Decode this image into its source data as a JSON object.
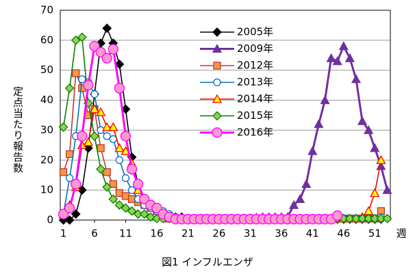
{
  "chart_data": {
    "type": "line",
    "caption": "図1 インフルエンザ",
    "y_label": "定点当たり報告数",
    "x_label": "週",
    "x": [
      1,
      2,
      3,
      4,
      5,
      6,
      7,
      8,
      9,
      10,
      11,
      12,
      13,
      14,
      15,
      16,
      17,
      18,
      19,
      20,
      21,
      22,
      23,
      24,
      25,
      26,
      27,
      28,
      29,
      30,
      31,
      32,
      33,
      34,
      35,
      36,
      37,
      38,
      39,
      40,
      41,
      42,
      43,
      44,
      45,
      46,
      47,
      48,
      49,
      50,
      51,
      52,
      53
    ],
    "xlim": [
      0.5,
      53.5
    ],
    "xticks": [
      1,
      6,
      11,
      16,
      21,
      26,
      31,
      36,
      41,
      46,
      51
    ],
    "ylim": [
      0,
      70
    ],
    "yticks": [
      0,
      10,
      20,
      30,
      40,
      50,
      60,
      70
    ],
    "grid": true,
    "series": [
      {
        "name": "2005年",
        "color": "#000000",
        "marker": "diamond",
        "marker_fill": "#000000",
        "values": [
          0,
          0,
          2,
          10,
          24,
          42,
          59,
          64,
          59,
          52,
          37,
          21,
          12,
          7,
          5,
          3,
          2,
          1.5,
          1,
          1,
          0.5,
          0.3,
          0.3,
          0.3,
          0.3,
          0.3,
          0.3,
          0.3,
          0.3,
          0.3,
          0.3,
          0.3,
          0.3,
          0.3,
          0.3,
          0.3,
          0.3,
          0.3,
          0.3,
          0.3,
          0.3,
          0.3,
          0.3,
          0.3,
          0.3,
          0.3,
          0.3,
          0.3,
          0.3,
          0.3,
          0.3,
          0.3,
          null
        ]
      },
      {
        "name": "2009年",
        "color": "#7030a0",
        "marker": "triangle",
        "marker_fill": "#7030a0",
        "values": [
          null,
          null,
          null,
          null,
          null,
          null,
          null,
          null,
          null,
          null,
          null,
          null,
          null,
          null,
          null,
          null,
          null,
          null,
          null,
          null,
          null,
          null,
          null,
          null,
          null,
          null,
          null,
          0.2,
          0.2,
          0.3,
          0.5,
          0.8,
          1,
          1,
          1,
          1,
          1,
          5,
          7,
          12,
          23,
          32,
          40,
          54,
          53,
          58,
          54,
          47,
          33,
          30,
          24,
          18,
          10
        ]
      },
      {
        "name": "2012年",
        "color": "#c0392b",
        "marker": "square",
        "marker_fill": "#f79646",
        "values": [
          16,
          22,
          49,
          44,
          35,
          37,
          24,
          16,
          12,
          9,
          8,
          7,
          6,
          5,
          4,
          3,
          2,
          1,
          0.5,
          0.5,
          0.5,
          0.5,
          0.5,
          0.5,
          0.5,
          0.5,
          0.5,
          0.5,
          0.5,
          0.5,
          0.5,
          0.5,
          0.5,
          0.5,
          0.5,
          0.5,
          0.5,
          0.5,
          0.5,
          0.5,
          0.5,
          0.5,
          0.5,
          0.5,
          0.5,
          0.5,
          0.5,
          0.5,
          0.5,
          0.5,
          0.5,
          3,
          null
        ]
      },
      {
        "name": "2013年",
        "color": "#0070c0",
        "marker": "circle",
        "marker_fill": "#ffffff",
        "values": [
          2,
          14,
          28,
          47,
          46,
          42,
          30,
          28,
          27,
          20,
          14,
          10,
          7,
          5,
          4,
          3,
          3,
          2,
          1,
          0.5,
          0.5,
          0.5,
          0.5,
          0.5,
          0.5,
          0.5,
          0.5,
          0.5,
          0.5,
          0.5,
          0.5,
          0.5,
          0.5,
          0.5,
          0.5,
          0.5,
          0.5,
          0.5,
          0.5,
          0.5,
          0.5,
          0.5,
          0.5,
          0.5,
          0.5,
          0.5,
          0.5,
          0.5,
          0.5,
          0.5,
          0.5,
          1,
          null
        ]
      },
      {
        "name": "2014年",
        "color": "#ff0000",
        "marker": "triangle",
        "marker_fill": "#ffff00",
        "values": [
          2,
          5,
          11,
          25,
          26,
          37,
          36,
          31,
          31,
          24,
          23,
          19,
          10,
          7,
          5,
          4,
          2,
          0.5,
          0.5,
          0.5,
          0.5,
          0.5,
          0.5,
          0.5,
          0.5,
          0.5,
          0.5,
          0.5,
          0.5,
          0.5,
          0.5,
          0.5,
          0.5,
          0.5,
          0.5,
          0.5,
          0.5,
          0.5,
          0.5,
          0.5,
          0.5,
          0.5,
          0.5,
          0.5,
          0.5,
          0.5,
          0.5,
          0.5,
          1,
          3,
          9,
          20,
          null
        ]
      },
      {
        "name": "2015年",
        "color": "#008000",
        "marker": "diamond",
        "marker_fill": "#92d050",
        "values": [
          31,
          44,
          60,
          61,
          39,
          28,
          17,
          11,
          7,
          5,
          4,
          3,
          2,
          2,
          1,
          0.5,
          0.5,
          0.5,
          0.5,
          0.5,
          0.5,
          0.5,
          0.5,
          0.5,
          0.5,
          0.5,
          0.5,
          0.5,
          0.5,
          0.5,
          0.5,
          0.5,
          0.5,
          0.5,
          0.5,
          0.5,
          0.5,
          0.5,
          0.5,
          0.5,
          0.5,
          0.5,
          0.5,
          0.5,
          0.5,
          0.5,
          0.5,
          0.5,
          0.5,
          0.5,
          0.5,
          0.5,
          0.5
        ]
      },
      {
        "name": "2016年",
        "color": "#ff00ff",
        "marker": "circle",
        "marker_fill": "#ff99cc",
        "values": [
          2,
          4,
          12,
          28,
          45,
          58,
          56,
          54,
          57,
          44,
          28,
          17,
          12,
          7,
          5,
          4,
          2,
          1,
          0.3,
          0.3,
          0.3,
          0.3,
          0.3,
          0.3,
          0.3,
          0.3,
          0.3,
          0.3,
          0.3,
          0.3,
          0.3,
          0.3,
          0.3,
          0.3,
          0.3,
          0.3,
          0.3,
          0.3,
          0.3,
          0.3,
          0.3,
          0.3,
          0.3,
          0.3,
          1.5,
          null,
          null,
          null,
          null,
          null,
          null,
          null,
          null
        ]
      }
    ]
  }
}
